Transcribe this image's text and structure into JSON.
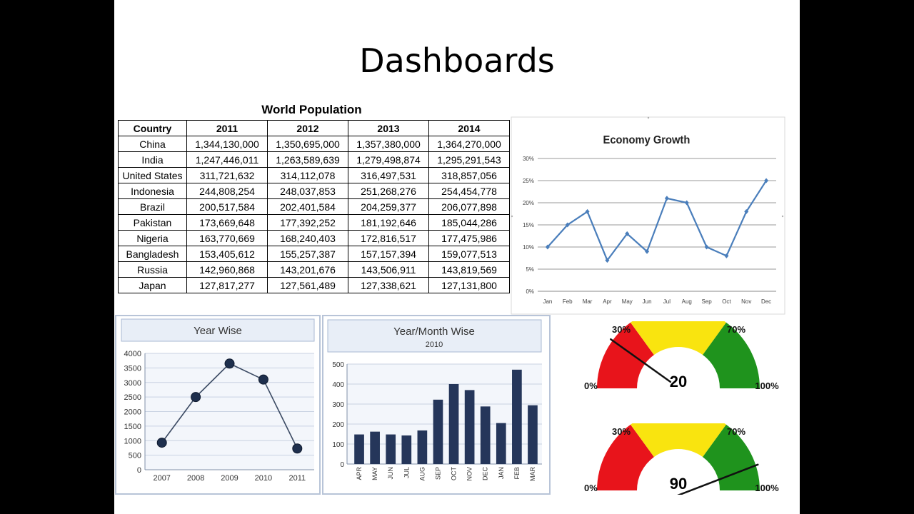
{
  "slide": {
    "title": "Dashboards"
  },
  "population_table": {
    "title": "World Population",
    "headers": [
      "Country",
      "2011",
      "2012",
      "2013",
      "2014"
    ],
    "rows": [
      [
        "China",
        "1,344,130,000",
        "1,350,695,000",
        "1,357,380,000",
        "1,364,270,000"
      ],
      [
        "India",
        "1,247,446,011",
        "1,263,589,639",
        "1,279,498,874",
        "1,295,291,543"
      ],
      [
        "United States",
        "311,721,632",
        "314,112,078",
        "316,497,531",
        "318,857,056"
      ],
      [
        "Indonesia",
        "244,808,254",
        "248,037,853",
        "251,268,276",
        "254,454,778"
      ],
      [
        "Brazil",
        "200,517,584",
        "202,401,584",
        "204,259,377",
        "206,077,898"
      ],
      [
        "Pakistan",
        "173,669,648",
        "177,392,252",
        "181,192,646",
        "185,044,286"
      ],
      [
        "Nigeria",
        "163,770,669",
        "168,240,403",
        "172,816,517",
        "177,475,986"
      ],
      [
        "Bangladesh",
        "153,405,612",
        "155,257,387",
        "157,157,394",
        "159,077,513"
      ],
      [
        "Russia",
        "142,960,868",
        "143,201,676",
        "143,506,911",
        "143,819,569"
      ],
      [
        "Japan",
        "127,817,277",
        "127,561,489",
        "127,338,621",
        "127,131,800"
      ]
    ]
  },
  "chart_data": [
    {
      "type": "line",
      "title": "Economy Growth",
      "categories": [
        "Jan",
        "Feb",
        "Mar",
        "Apr",
        "May",
        "Jun",
        "Jul",
        "Aug",
        "Sep",
        "Oct",
        "Nov",
        "Dec"
      ],
      "values": [
        10,
        15,
        18,
        7,
        13,
        9,
        21,
        20,
        10,
        8,
        18,
        25
      ],
      "ylim": [
        0,
        30
      ],
      "yticks": [
        "0%",
        "5%",
        "10%",
        "15%",
        "20%",
        "25%",
        "30%"
      ],
      "grid": true,
      "color": "#4a7ebb"
    },
    {
      "type": "line",
      "title": "Year Wise",
      "categories": [
        "2007",
        "2008",
        "2009",
        "2010",
        "2011"
      ],
      "values": [
        930,
        2500,
        3650,
        3100,
        730
      ],
      "ylim": [
        0,
        4000
      ],
      "yticks": [
        "0",
        "500",
        "1000",
        "1500",
        "2000",
        "2500",
        "3000",
        "3500",
        "4000"
      ],
      "grid": true,
      "color": "#1e2f4d"
    },
    {
      "type": "bar",
      "title": "Year/Month Wise",
      "subtitle": "2010",
      "categories": [
        "APR",
        "MAY",
        "JUN",
        "JUL",
        "AUG",
        "SEP",
        "OCT",
        "NOV",
        "DEC",
        "JAN",
        "FEB",
        "MAR"
      ],
      "values": [
        148,
        162,
        148,
        143,
        168,
        322,
        400,
        370,
        288,
        205,
        472,
        294
      ],
      "ylim": [
        0,
        500
      ],
      "yticks": [
        "0",
        "100",
        "200",
        "300",
        "400",
        "500"
      ],
      "grid": true,
      "color": "#25365a"
    }
  ],
  "gauges": [
    {
      "value": 20,
      "value_label": "20",
      "labels": [
        "0%",
        "30%",
        "70%",
        "100%"
      ],
      "bands": [
        [
          0,
          30
        ],
        [
          30,
          70
        ],
        [
          70,
          100
        ]
      ]
    },
    {
      "value": 90,
      "value_label": "90",
      "labels": [
        "0%",
        "30%",
        "70%",
        "100%"
      ],
      "bands": [
        [
          0,
          30
        ],
        [
          30,
          70
        ],
        [
          70,
          100
        ]
      ]
    }
  ],
  "colors": {
    "red": "#e8141b",
    "yellow": "#f9e40f",
    "green": "#1f931d",
    "panel_header": "#e8eef7"
  }
}
